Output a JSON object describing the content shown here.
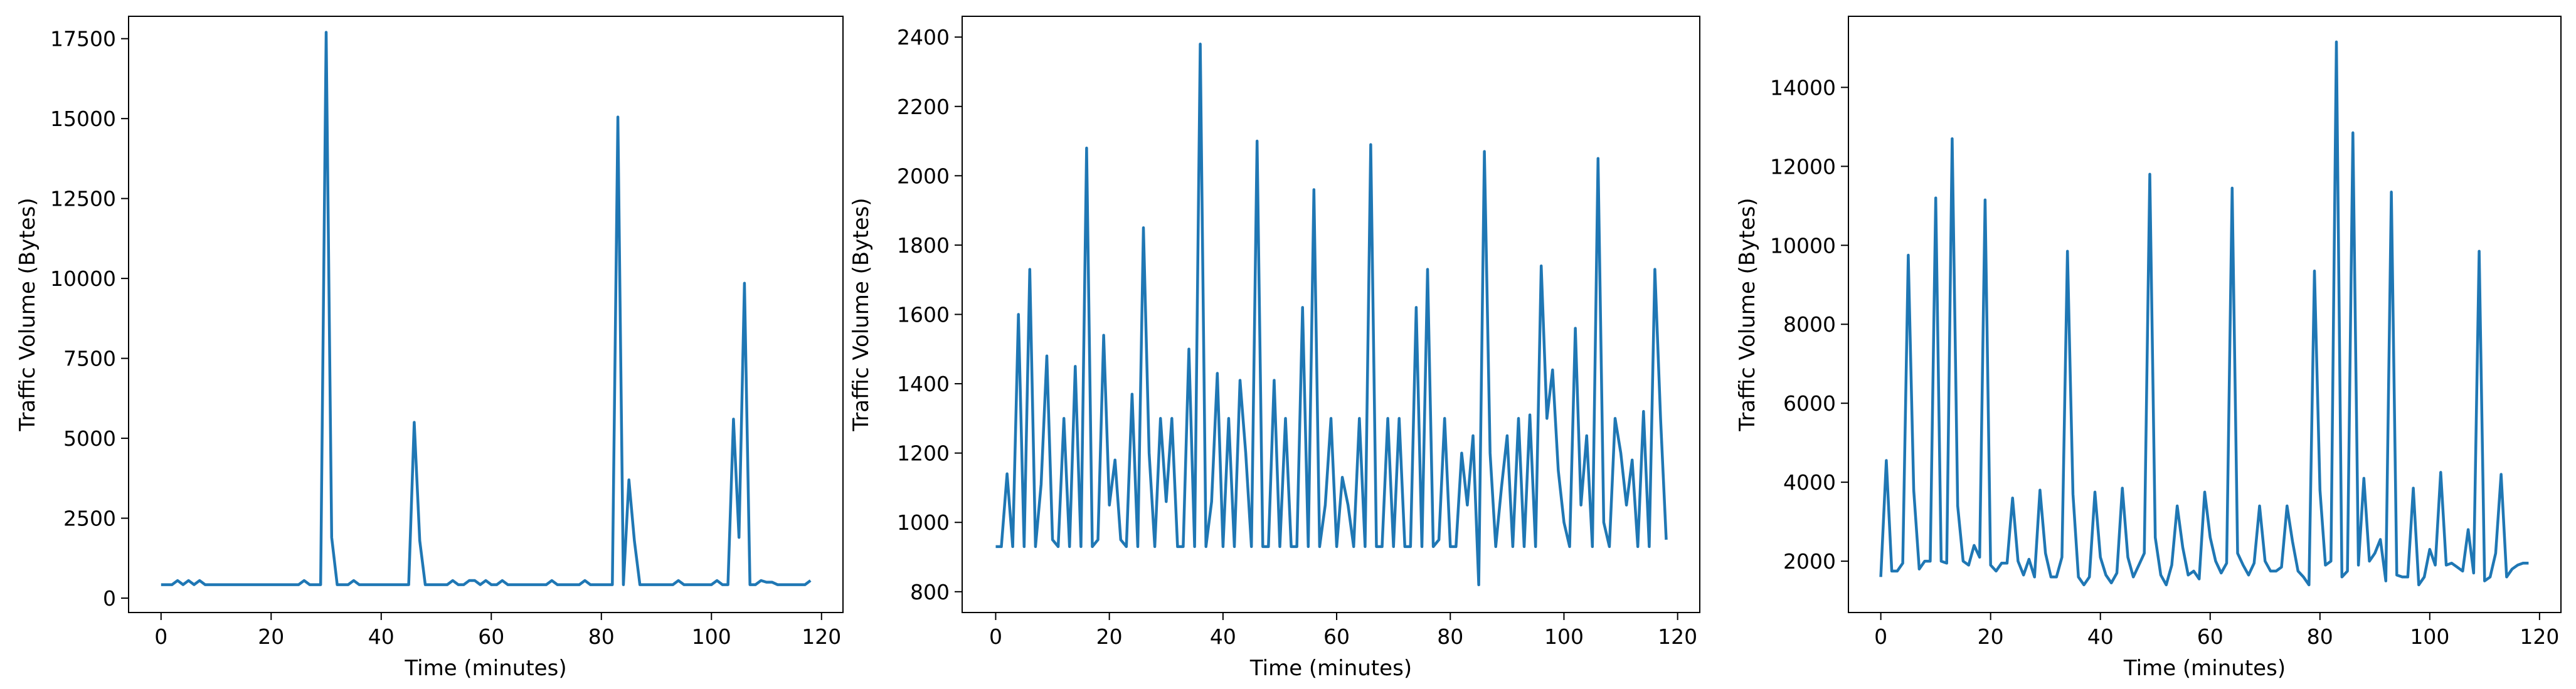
{
  "chart_data": [
    {
      "type": "line",
      "xlabel": "Time (minutes)",
      "ylabel": "Traffic Volume (Bytes)",
      "xlim": [
        -5.9,
        123.9
      ],
      "ylim": [
        -450,
        18200
      ],
      "xticks": [
        0,
        20,
        40,
        60,
        80,
        100,
        120
      ],
      "yticks": [
        0,
        2500,
        5000,
        7500,
        10000,
        12500,
        15000,
        17500
      ],
      "grid": false,
      "line_color": "#1f77b4",
      "x": [
        0,
        1,
        2,
        3,
        4,
        5,
        6,
        7,
        8,
        9,
        10,
        11,
        12,
        13,
        14,
        15,
        16,
        17,
        18,
        19,
        20,
        21,
        22,
        23,
        24,
        25,
        26,
        27,
        28,
        29,
        30,
        31,
        32,
        33,
        34,
        35,
        36,
        37,
        38,
        39,
        40,
        41,
        42,
        43,
        44,
        45,
        46,
        47,
        48,
        49,
        50,
        51,
        52,
        53,
        54,
        55,
        56,
        57,
        58,
        59,
        60,
        61,
        62,
        63,
        64,
        65,
        66,
        67,
        68,
        69,
        70,
        71,
        72,
        73,
        74,
        75,
        76,
        77,
        78,
        79,
        80,
        81,
        82,
        83,
        84,
        85,
        86,
        87,
        88,
        89,
        90,
        91,
        92,
        93,
        94,
        95,
        96,
        97,
        98,
        99,
        100,
        101,
        102,
        103,
        104,
        105,
        106,
        107,
        108,
        109,
        110,
        111,
        112,
        113,
        114,
        115,
        116,
        117,
        118
      ],
      "values": [
        420,
        420,
        420,
        550,
        420,
        550,
        420,
        550,
        420,
        420,
        420,
        420,
        420,
        420,
        420,
        420,
        420,
        420,
        420,
        420,
        420,
        420,
        420,
        420,
        420,
        420,
        550,
        420,
        420,
        420,
        17700,
        1900,
        420,
        420,
        420,
        550,
        420,
        420,
        420,
        420,
        420,
        420,
        420,
        420,
        420,
        420,
        5500,
        1800,
        420,
        420,
        420,
        420,
        420,
        550,
        420,
        420,
        550,
        550,
        420,
        550,
        420,
        420,
        550,
        420,
        420,
        420,
        420,
        420,
        420,
        420,
        420,
        550,
        420,
        420,
        420,
        420,
        420,
        550,
        420,
        420,
        420,
        420,
        420,
        15050,
        420,
        3700,
        1800,
        420,
        420,
        420,
        420,
        420,
        420,
        420,
        550,
        420,
        420,
        420,
        420,
        420,
        420,
        550,
        420,
        420,
        5600,
        1900,
        9850,
        420,
        420,
        550,
        500,
        500,
        420,
        420,
        420,
        420,
        420,
        420,
        550
      ]
    },
    {
      "type": "line",
      "xlabel": "Time (minutes)",
      "ylabel": "Traffic Volume (Bytes)",
      "xlim": [
        -5.9,
        123.9
      ],
      "ylim": [
        740,
        2460
      ],
      "xticks": [
        0,
        20,
        40,
        60,
        80,
        100,
        120
      ],
      "yticks": [
        800,
        1000,
        1200,
        1400,
        1600,
        1800,
        2000,
        2200,
        2400
      ],
      "grid": false,
      "line_color": "#1f77b4",
      "x": [
        0,
        1,
        2,
        3,
        4,
        5,
        6,
        7,
        8,
        9,
        10,
        11,
        12,
        13,
        14,
        15,
        16,
        17,
        18,
        19,
        20,
        21,
        22,
        23,
        24,
        25,
        26,
        27,
        28,
        29,
        30,
        31,
        32,
        33,
        34,
        35,
        36,
        37,
        38,
        39,
        40,
        41,
        42,
        43,
        44,
        45,
        46,
        47,
        48,
        49,
        50,
        51,
        52,
        53,
        54,
        55,
        56,
        57,
        58,
        59,
        60,
        61,
        62,
        63,
        64,
        65,
        66,
        67,
        68,
        69,
        70,
        71,
        72,
        73,
        74,
        75,
        76,
        77,
        78,
        79,
        80,
        81,
        82,
        83,
        84,
        85,
        86,
        87,
        88,
        89,
        90,
        91,
        92,
        93,
        94,
        95,
        96,
        97,
        98,
        99,
        100,
        101,
        102,
        103,
        104,
        105,
        106,
        107,
        108,
        109,
        110,
        111,
        112,
        113,
        114,
        115,
        116,
        117,
        118
      ],
      "values": [
        930,
        930,
        1140,
        930,
        1600,
        930,
        1730,
        930,
        1110,
        1480,
        950,
        930,
        1300,
        930,
        1450,
        930,
        2080,
        930,
        950,
        1540,
        1050,
        1180,
        950,
        930,
        1370,
        930,
        1850,
        1200,
        930,
        1300,
        1060,
        1300,
        930,
        930,
        1500,
        930,
        2380,
        930,
        1060,
        1430,
        930,
        1300,
        930,
        1410,
        1200,
        930,
        2100,
        930,
        930,
        1410,
        930,
        1300,
        930,
        930,
        1620,
        930,
        1960,
        930,
        1050,
        1300,
        930,
        1130,
        1050,
        930,
        1300,
        930,
        2090,
        930,
        930,
        1300,
        930,
        1300,
        930,
        930,
        1620,
        930,
        1730,
        930,
        950,
        1300,
        930,
        930,
        1200,
        1050,
        1250,
        820,
        2070,
        1200,
        930,
        1100,
        1250,
        930,
        1300,
        930,
        1310,
        930,
        1740,
        1300,
        1440,
        1150,
        1000,
        930,
        1560,
        1050,
        1250,
        930,
        2050,
        1000,
        930,
        1300,
        1200,
        1050,
        1180,
        930,
        1320,
        930,
        1730,
        1300,
        950
      ]
    },
    {
      "type": "line",
      "xlabel": "Time (minutes)",
      "ylabel": "Traffic Volume (Bytes)",
      "xlim": [
        -5.9,
        123.9
      ],
      "ylim": [
        700,
        15800
      ],
      "xticks": [
        0,
        20,
        40,
        60,
        80,
        100,
        120
      ],
      "yticks": [
        2000,
        4000,
        6000,
        8000,
        10000,
        12000,
        14000
      ],
      "grid": false,
      "line_color": "#1f77b4",
      "x": [
        0,
        1,
        2,
        3,
        4,
        5,
        6,
        7,
        8,
        9,
        10,
        11,
        12,
        13,
        14,
        15,
        16,
        17,
        18,
        19,
        20,
        21,
        22,
        23,
        24,
        25,
        26,
        27,
        28,
        29,
        30,
        31,
        32,
        33,
        34,
        35,
        36,
        37,
        38,
        39,
        40,
        41,
        42,
        43,
        44,
        45,
        46,
        47,
        48,
        49,
        50,
        51,
        52,
        53,
        54,
        55,
        56,
        57,
        58,
        59,
        60,
        61,
        62,
        63,
        64,
        65,
        66,
        67,
        68,
        69,
        70,
        71,
        72,
        73,
        74,
        75,
        76,
        77,
        78,
        79,
        80,
        81,
        82,
        83,
        84,
        85,
        86,
        87,
        88,
        89,
        90,
        91,
        92,
        93,
        94,
        95,
        96,
        97,
        98,
        99,
        100,
        101,
        102,
        103,
        104,
        105,
        106,
        107,
        108,
        109,
        110,
        111,
        112,
        113,
        114,
        115,
        116,
        117,
        118
      ],
      "values": [
        1600,
        4550,
        1750,
        1750,
        1950,
        9750,
        3800,
        1800,
        2000,
        2000,
        11200,
        2000,
        1950,
        12700,
        3400,
        2000,
        1900,
        2400,
        2100,
        11150,
        1900,
        1750,
        1950,
        1950,
        3600,
        2000,
        1650,
        2050,
        1600,
        3800,
        2200,
        1600,
        1600,
        2100,
        9850,
        3700,
        1600,
        1400,
        1600,
        3750,
        2100,
        1650,
        1450,
        1700,
        3850,
        2100,
        1600,
        1900,
        2200,
        11800,
        2600,
        1650,
        1400,
        1900,
        3400,
        2350,
        1650,
        1750,
        1550,
        3750,
        2600,
        2000,
        1700,
        1950,
        11450,
        2200,
        1900,
        1650,
        1950,
        3400,
        2000,
        1750,
        1750,
        1850,
        3400,
        2500,
        1750,
        1600,
        1400,
        9350,
        3800,
        1900,
        2000,
        15150,
        1600,
        1750,
        12850,
        1900,
        4100,
        2000,
        2200,
        2550,
        1500,
        11350,
        1650,
        1600,
        1600,
        3850,
        1400,
        1600,
        2300,
        1900,
        4250,
        1900,
        1950,
        1850,
        1750,
        2800,
        1700,
        9850,
        1500,
        1600,
        2200,
        4200,
        1600,
        1800,
        1900,
        1950,
        1950
      ]
    }
  ]
}
